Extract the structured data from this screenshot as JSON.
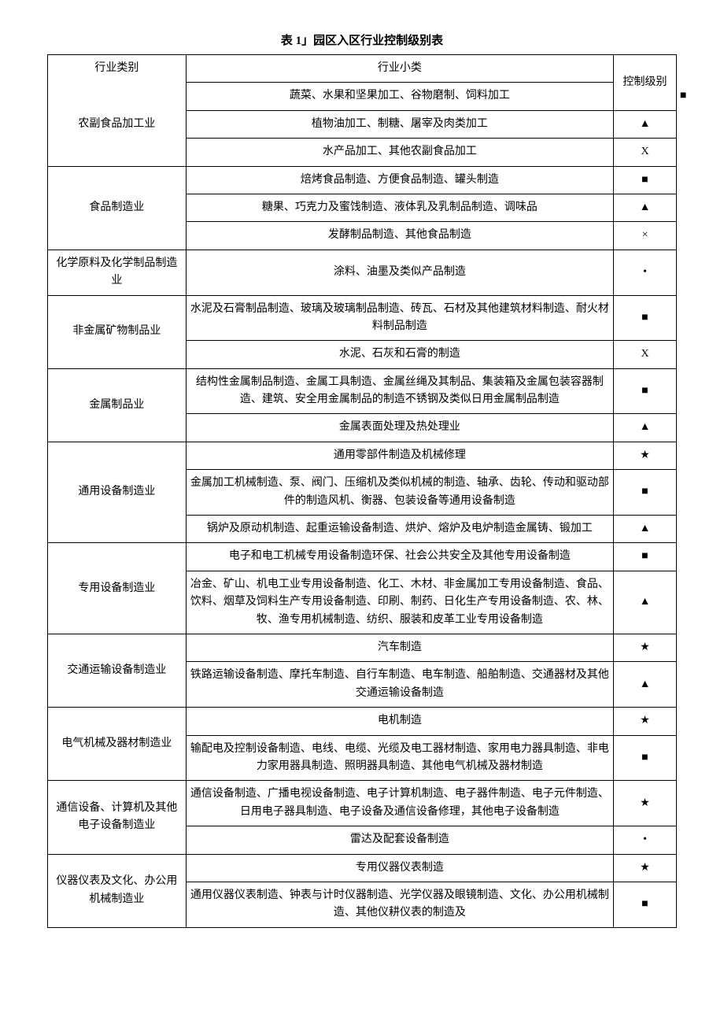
{
  "title": "表 1」园区入区行业控制级别表",
  "headers": {
    "category": "行业类别",
    "subcategory": "行业小类",
    "level": "控制级别"
  },
  "rows": [
    {
      "category": "农副食品加工业",
      "subs": [
        {
          "text": "蔬菜、水果和坚果加工、谷物磨制、饲料加工",
          "level": "■"
        },
        {
          "text": "植物油加工、制糖、屠宰及肉类加工",
          "level": "▲"
        },
        {
          "text": "水产品加工、其他农副食品加工",
          "level": "X"
        }
      ]
    },
    {
      "category": "食品制造业",
      "subs": [
        {
          "text": "焙烤食品制造、方便食品制造、罐头制造",
          "level": "■"
        },
        {
          "text": "糖果、巧克力及蜜饯制造、液体乳及乳制品制造、调味品",
          "level": "▲"
        },
        {
          "text": "发酵制品制造、其他食品制造",
          "level": "×"
        }
      ]
    },
    {
      "category": "化学原料及化学制品制造业",
      "subs": [
        {
          "text": "涂料、油墨及类似产品制造",
          "level": "•"
        }
      ]
    },
    {
      "category": "非金属矿物制品业",
      "subs": [
        {
          "text": "水泥及石膏制品制造、玻璃及玻璃制品制造、砖瓦、石材及其他建筑材料制造、耐火材料制品制造",
          "level": "■"
        },
        {
          "text": "水泥、石灰和石膏的制造",
          "level": "X"
        }
      ]
    },
    {
      "category": "金属制品业",
      "subs": [
        {
          "text": "结构性金属制品制造、金属工具制造、金属丝绳及其制品、集装箱及金属包装容器制造、建筑、安全用金属制品的制造不锈钢及类似日用金属制品制造",
          "level": "■"
        },
        {
          "text": "金属表面处理及热处理业",
          "level": "▲"
        }
      ]
    },
    {
      "category": "通用设备制造业",
      "subs": [
        {
          "text": "通用零部件制造及机械修理",
          "level": "★"
        },
        {
          "text": "金属加工机械制造、泵、阀门、压缩机及类似机械的制造、轴承、齿轮、传动和驱动部件的制造风机、衡器、包装设备等通用设备制造",
          "level": "■"
        },
        {
          "text": "锅炉及原动机制造、起重运输设备制造、烘炉、熔炉及电炉制造金属铸、锻加工",
          "level": "▲"
        }
      ]
    },
    {
      "category": "专用设备制造业",
      "subs": [
        {
          "text": "电子和电工机械专用设备制造环保、社会公共安全及其他专用设备制造",
          "level": "■"
        },
        {
          "text": "冶金、矿山、机电工业专用设备制造、化工、木材、非金属加工专用设备制造、食品、饮料、烟草及饲料生产专用设备制造、印刷、制药、日化生产专用设备制造、农、林、牧、渔专用机械制造、纺织、服装和皮革工业专用设备制造",
          "level": "▲"
        }
      ]
    },
    {
      "category": "交通运输设备制造业",
      "subs": [
        {
          "text": "汽车制造",
          "level": "★"
        },
        {
          "text": "铁路运输设备制造、摩托车制造、自行车制造、电车制造、船舶制造、交通器材及其他交通运输设备制造",
          "level": "▲"
        }
      ]
    },
    {
      "category": "电气机械及器材制造业",
      "subs": [
        {
          "text": "电机制造",
          "level": "★"
        },
        {
          "text": "输配电及控制设备制造、电线、电缆、光缆及电工器材制造、家用电力器具制造、非电力家用器具制造、照明器具制造、其他电气机械及器材制造",
          "level": "■"
        }
      ]
    },
    {
      "category": "通信设备、计算机及其他电子设备制造业",
      "subs": [
        {
          "text": "通信设备制造、广播电视设备制造、电子计算机制造、电子器件制造、电子元件制造、日用电子器具制造、电子设备及通信设备修理，其他电子设备制造",
          "level": "★"
        },
        {
          "text": "雷达及配套设备制造",
          "level": "•"
        }
      ]
    },
    {
      "category": "仪器仪表及文化、办公用机械制造业",
      "subs": [
        {
          "text": "专用仪器仪表制造",
          "level": "★"
        },
        {
          "text": "通用仪器仪表制造、钟表与计时仪器制造、光学仪器及眼镜制造、文化、办公用机械制造、其他仪耕仪表的制造及",
          "level": "■"
        }
      ]
    }
  ]
}
